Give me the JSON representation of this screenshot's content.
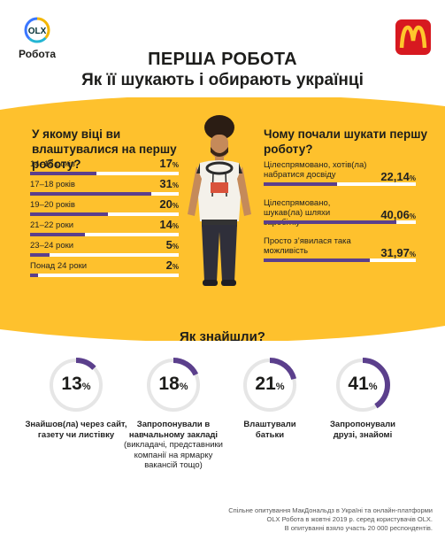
{
  "header": {
    "olx_logo_text": "OLX",
    "olx_logo_sub": "Робота",
    "title": "ПЕРША РОБОТА",
    "subtitle": "Як її шукають і обирають українці"
  },
  "colors": {
    "yellow": "#fec12d",
    "purple": "#5b3f8c",
    "track_gray": "#e6e6e6",
    "mcd_red": "#d71920",
    "mcd_yellow": "#ffc72c"
  },
  "chart_data": [
    {
      "type": "bar",
      "title": "У якому віці ви влаштувалися на першу роботу?",
      "categories": [
        "14–16 років",
        "17–18 років",
        "19–20 років",
        "21–22 роки",
        "23–24 роки",
        "Понад 24 роки"
      ],
      "values": [
        17,
        31,
        20,
        14,
        5,
        2
      ],
      "value_labels": [
        "17",
        "31",
        "20",
        "14",
        "5",
        "2"
      ],
      "unit": "%",
      "ylim": [
        0,
        100
      ]
    },
    {
      "type": "bar",
      "title": "Чому почали шукати першу роботу?",
      "categories": [
        "Цілеспрямовано, хотів(ла) набратися досвіду",
        "Цілеспрямовано, шукав(ла) шляхи заробітку",
        "Просто з’явилася така можливість"
      ],
      "values": [
        22.14,
        40.06,
        31.97
      ],
      "value_labels": [
        "22,14",
        "40,06",
        "31,97"
      ],
      "unit": "%",
      "ylim": [
        0,
        100
      ]
    },
    {
      "type": "pie",
      "title": "Як знайшли?",
      "categories": [
        "Знайшов(ла) через сайт, газету чи листівку",
        "Запропонували в навчальному закладі",
        "Влаштували батьки",
        "Запропонували друзі, знайомі"
      ],
      "values": [
        13,
        18,
        21,
        41
      ],
      "value_labels": [
        "13",
        "18",
        "21",
        "41"
      ],
      "notes": [
        "",
        "(викладачі, представники компанії на ярмарку вакансій тощо)",
        "",
        ""
      ],
      "unit": "%"
    }
  ],
  "footnote": {
    "line1": "Спільне опитування МакДональдз в Україні та онлайн-платформи",
    "line2": "OLX Робота в жовтні 2019 р. серед користувачів OLX.",
    "line3": "В опитуванні взяло участь 20 000 респондентів."
  }
}
